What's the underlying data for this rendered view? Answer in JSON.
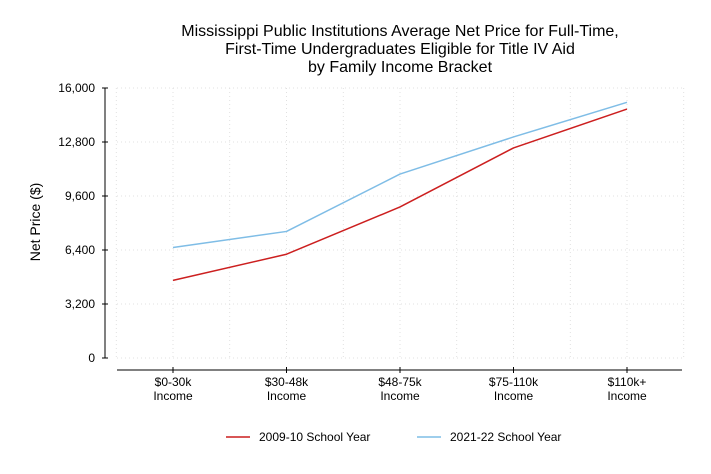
{
  "chart_data": {
    "type": "line",
    "title_lines": [
      "Mississippi Public Institutions Average Net Price for Full-Time,",
      "First-Time Undergraduates Eligible for Title IV Aid",
      "by Family Income Bracket"
    ],
    "ylabel": "Net Price ($)",
    "xlabel": "",
    "categories": [
      [
        "$0-30k",
        "Income"
      ],
      [
        "$30-48k",
        "Income"
      ],
      [
        "$48-75k",
        "Income"
      ],
      [
        "$75-110k",
        "Income"
      ],
      [
        "$110k+",
        "Income"
      ]
    ],
    "ylim": [
      0,
      16000
    ],
    "yticks": [
      0,
      3200,
      6400,
      9600,
      12800,
      16000
    ],
    "ytick_labels": [
      "0",
      "3,200",
      "6,400",
      "9,600",
      "12,800",
      "16,000"
    ],
    "grid": true,
    "legend_position": "bottom",
    "series": [
      {
        "name": "2009-10 School Year",
        "color": "#cc1f1f",
        "values": [
          4600,
          6150,
          8950,
          12450,
          14750
        ]
      },
      {
        "name": "2021-22 School Year",
        "color": "#7fbde6",
        "values": [
          6550,
          7500,
          10900,
          13100,
          15150
        ]
      }
    ]
  }
}
